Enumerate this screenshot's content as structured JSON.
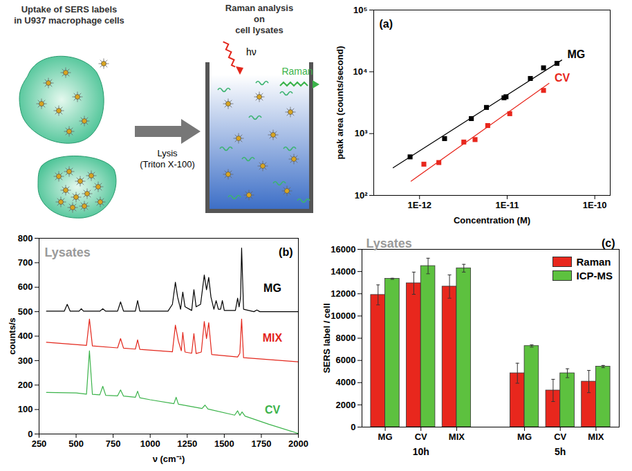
{
  "diagram": {
    "cells": {
      "text_lines": [
        "Uptake of SERS labels",
        "in U937 macrophage cells"
      ]
    },
    "arrow": {
      "text_lines": [
        "Lysis",
        "(Triton X-100)"
      ]
    },
    "cuvette": {
      "text_lines": [
        "Raman analysis",
        "on",
        "cell lysates"
      ],
      "excitation": "hν",
      "emission": "Raman"
    }
  },
  "chart_data": [
    {
      "type": "scatter",
      "title": "(a)",
      "log": true,
      "xlabel": "Concentration (M)",
      "ylabel": "peak area (counts/second)",
      "xlim": [
        3e-13,
        1.5e-10
      ],
      "xticks": [
        {
          "value": 1e-12,
          "label": "1E-12"
        },
        {
          "value": 1e-11,
          "label": "1E-11"
        },
        {
          "value": 1e-10,
          "label": "1E-10"
        }
      ],
      "ylim": [
        100,
        100000
      ],
      "yticks": [
        {
          "value": 100,
          "label": "10²"
        },
        {
          "value": 1000,
          "label": "10³"
        },
        {
          "value": 10000,
          "label": "10⁴"
        },
        {
          "value": 100000,
          "label": "10⁵"
        }
      ],
      "series": [
        {
          "name": "MG",
          "color": "#000000",
          "marker": "square",
          "x": [
            7.8e-13,
            1.93e-12,
            3.9e-12,
            5.8e-12,
            9.2e-12,
            9.7e-12,
            1.84e-11,
            2.6e-11,
            3.7e-11
          ],
          "values": [
            420,
            830,
            1750,
            2650,
            3800,
            3950,
            7800,
            11600,
            13700
          ],
          "fit": {
            "x": [
              5e-13,
              4.2e-11
            ],
            "values": [
              280,
              15500
            ]
          }
        },
        {
          "name": "CV",
          "color": "#e8271d",
          "marker": "square",
          "x": [
            1.12e-12,
            1.66e-12,
            3.2e-12,
            4.3e-12,
            6e-12,
            1.07e-11,
            2.6e-11
          ],
          "values": [
            320,
            340,
            730,
            800,
            1350,
            2100,
            5000
          ],
          "fit": {
            "x": [
              8e-13,
              3e-11
            ],
            "values": [
              170,
              6500
            ]
          }
        }
      ]
    },
    {
      "type": "line",
      "title": "(b)",
      "annotations": [
        "Lysates"
      ],
      "xlabel": "ν (cm⁻¹)",
      "ylabel": "counts/s",
      "xlim": [
        250,
        2000
      ],
      "xticks": [
        250,
        500,
        750,
        1000,
        1250,
        1500,
        1750,
        2000
      ],
      "ylim": [
        0,
        800
      ],
      "yticks": [
        0,
        100,
        200,
        300,
        400,
        500,
        600,
        700,
        800
      ],
      "series": [
        {
          "name": "MG",
          "color": "#000000",
          "x": [
            300,
            420,
            440,
            460,
            520,
            535,
            550,
            660,
            680,
            700,
            780,
            800,
            820,
            900,
            915,
            930,
            1120,
            1150,
            1170,
            1185,
            1205,
            1220,
            1235,
            1280,
            1295,
            1310,
            1340,
            1365,
            1380,
            1395,
            1410,
            1430,
            1445,
            1460,
            1475,
            1487,
            1500,
            1575,
            1590,
            1600,
            1610,
            1617,
            1630,
            1700,
            1720,
            1740,
            2000
          ],
          "values": [
            502,
            502,
            530,
            502,
            502,
            512,
            502,
            502,
            512,
            502,
            502,
            540,
            502,
            502,
            545,
            502,
            502,
            530,
            620,
            560,
            510,
            580,
            520,
            505,
            590,
            520,
            530,
            650,
            590,
            640,
            560,
            510,
            545,
            510,
            510,
            545,
            505,
            505,
            555,
            520,
            560,
            760,
            510,
            500,
            507,
            500,
            500
          ]
        },
        {
          "name": "MIX",
          "color": "#e3261b",
          "x": [
            300,
            570,
            590,
            610,
            780,
            800,
            820,
            900,
            915,
            930,
            1150,
            1170,
            1190,
            1210,
            1220,
            1235,
            1280,
            1295,
            1310,
            1345,
            1365,
            1380,
            1395,
            1415,
            1590,
            1605,
            1617,
            1630,
            2000
          ],
          "values": [
            375,
            362,
            470,
            360,
            352,
            390,
            351,
            347,
            385,
            346,
            336,
            445,
            380,
            340,
            415,
            335,
            330,
            410,
            329,
            335,
            460,
            390,
            455,
            325,
            315,
            330,
            470,
            312,
            295
          ]
        },
        {
          "name": "CV",
          "color": "#3bb34a",
          "x": [
            300,
            500,
            570,
            590,
            610,
            660,
            680,
            700,
            780,
            800,
            820,
            900,
            915,
            930,
            1000,
            1160,
            1175,
            1190,
            1350,
            1370,
            1390,
            1570,
            1590,
            1605,
            1620,
            1640,
            1800,
            2000
          ],
          "values": [
            170,
            168,
            163,
            340,
            162,
            160,
            195,
            158,
            156,
            180,
            155,
            150,
            175,
            148,
            140,
            124,
            150,
            122,
            104,
            118,
            102,
            77,
            95,
            76,
            90,
            73,
            40,
            2
          ]
        }
      ]
    },
    {
      "type": "bar",
      "title": "(c)",
      "annotations": [
        "Lysates"
      ],
      "ylabel": "SERS label / cell",
      "categories": [
        "MG",
        "CV",
        "MIX",
        "MG",
        "CV",
        "MIX"
      ],
      "groups": [
        "10h",
        "10h",
        "10h",
        "5h",
        "5h",
        "5h"
      ],
      "ylim": [
        0,
        16000
      ],
      "yticks": [
        0,
        2000,
        4000,
        6000,
        8000,
        10000,
        12000,
        14000,
        16000
      ],
      "legend": "top-right",
      "series": [
        {
          "name": "Raman",
          "color": "#e8271d",
          "values": [
            11900,
            12950,
            12650,
            4850,
            3300,
            4100
          ],
          "errors": [
            900,
            1000,
            1050,
            900,
            1000,
            1000
          ]
        },
        {
          "name": "ICP-MS",
          "color": "#5dc13f",
          "values": [
            13350,
            14500,
            14300,
            7300,
            4850,
            5450
          ],
          "errors": [
            50,
            700,
            350,
            100,
            400,
            100
          ]
        }
      ]
    }
  ]
}
